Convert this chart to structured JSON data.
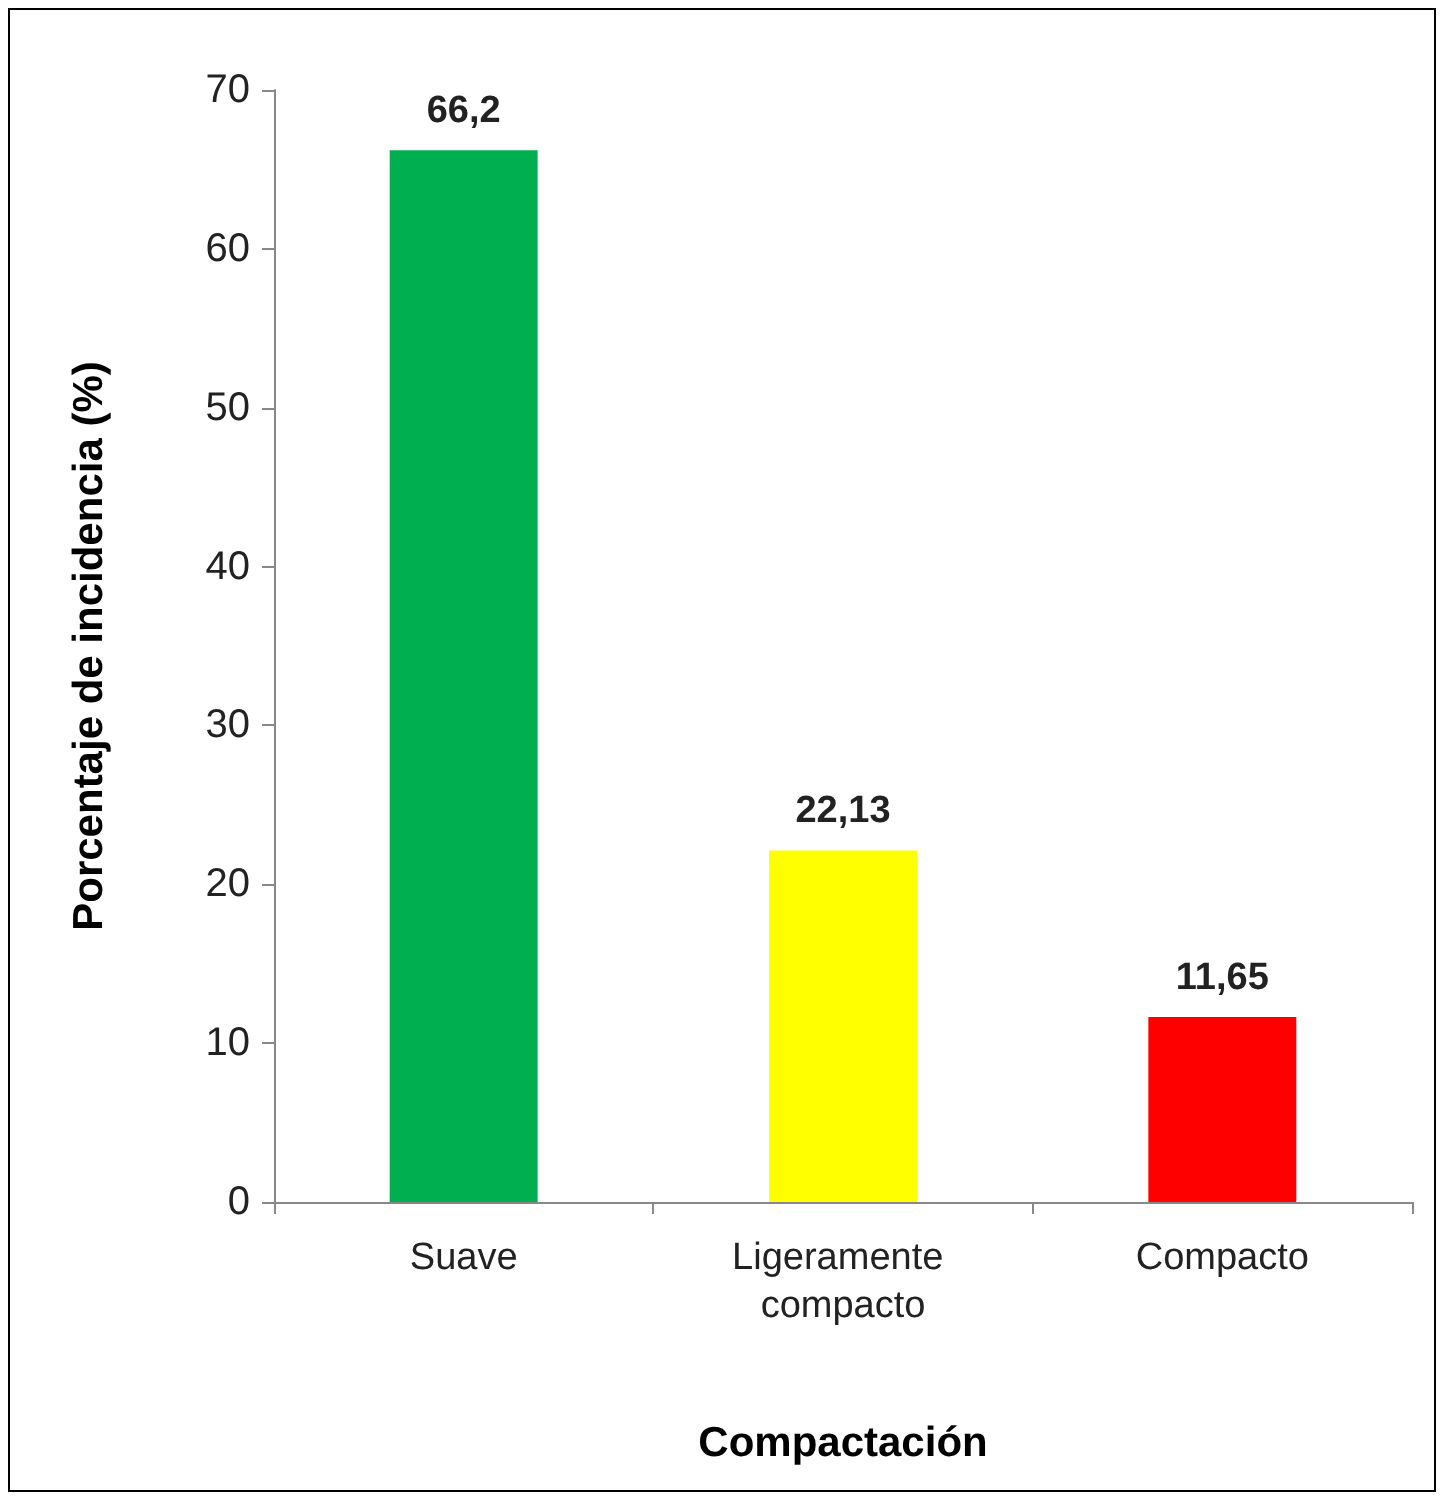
{
  "chart_data": {
    "type": "bar",
    "xlabel": "Compactación",
    "ylabel": "Porcentaje de incidencia (%)",
    "categories": [
      "Suave",
      "Ligeramente compacto",
      "Compacto"
    ],
    "values": [
      66.2,
      22.13,
      11.65
    ],
    "colors": [
      "#00b050",
      "#ffff00",
      "#ff0000"
    ],
    "value_labels": [
      "66,2",
      "22,13",
      "11,65"
    ],
    "ylim": [
      0,
      70
    ],
    "yticks": [
      0,
      10,
      20,
      30,
      40,
      50,
      60,
      70
    ],
    "grid": false
  }
}
